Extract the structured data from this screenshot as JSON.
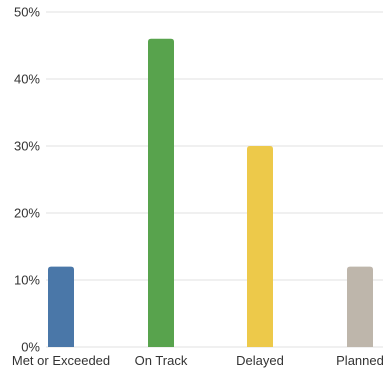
{
  "chart_data": {
    "type": "bar",
    "title": "",
    "xlabel": "",
    "ylabel": "",
    "categories": [
      "Met or Exceeded",
      "On Track",
      "Delayed",
      "Planned"
    ],
    "values": [
      12,
      46,
      30,
      12
    ],
    "colors": [
      "#4a77a8",
      "#58a34d",
      "#edc94a",
      "#beb6ab"
    ],
    "ylim": [
      0,
      50
    ],
    "yticks": [
      0,
      10,
      20,
      30,
      40,
      50
    ],
    "ytick_labels": [
      "0%",
      "10%",
      "20%",
      "30%",
      "40%",
      "50%"
    ],
    "grid": true,
    "legend": "none"
  }
}
